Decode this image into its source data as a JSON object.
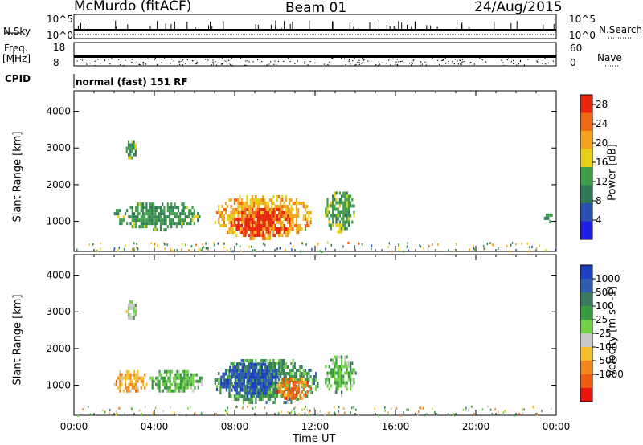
{
  "header": {
    "station": "McMurdo (fitACF)",
    "beam": "Beam 01",
    "date": "24/Aug/2015"
  },
  "strip": {
    "nsky_label": "N.Sky",
    "nsearch_label": "N.Search",
    "freq_label_top": "Freq.",
    "freq_label_unit": "[MHz]",
    "nave_label": "Nave",
    "cpid_label": "CPID",
    "cpid_text": "normal (fast) 151 RF",
    "noise_left_ticks": [
      "10^5",
      "10^0"
    ],
    "noise_right_ticks": [
      "10^5",
      "10^0"
    ],
    "freq_ticks": [
      "18",
      "8"
    ],
    "nave_ticks": [
      "60",
      "0"
    ]
  },
  "colors": {
    "power_scale": [
      "#1e1ee6",
      "#2b4fb0",
      "#2e7a54",
      "#3f9c48",
      "#e6cf15",
      "#f5a31c",
      "#ee6a12",
      "#e8250e"
    ],
    "velocity_scale": [
      "#e8150e",
      "#f05a10",
      "#f0861a",
      "#f5bf2a",
      "#c8c8c8",
      "#6fcf45",
      "#3a9a40",
      "#3a7a60",
      "#2e5db2",
      "#1e3fbf"
    ]
  },
  "chart_data": [
    {
      "type": "heatmap",
      "title": "",
      "xlabel": "Time UT",
      "ylabel": "Slant Range [km]",
      "x_tick_labels": [
        "00:00",
        "04:00",
        "08:00",
        "12:00",
        "16:00",
        "20:00",
        "00:00"
      ],
      "y_tick_labels": [
        "1000",
        "2000",
        "3000",
        "4000"
      ],
      "xlim_hours": [
        0,
        24
      ],
      "ylim_km": [
        180,
        4560
      ],
      "colorbar": {
        "label": "Power [dB]",
        "ticks": [
          "4",
          "8",
          "12",
          "16",
          "20",
          "24",
          "28"
        ],
        "range": [
          0,
          30
        ]
      },
      "features": [
        {
          "time_start": 1.9,
          "time_end": 6.3,
          "range_low": 800,
          "range_high": 1600,
          "value": 12
        },
        {
          "time_start": 6.9,
          "time_end": 11.9,
          "range_low": 550,
          "range_high": 1800,
          "value": 20
        },
        {
          "time_start": 7.7,
          "time_end": 10.8,
          "range_low": 600,
          "range_high": 1450,
          "value": 28
        },
        {
          "time_start": 12.4,
          "time_end": 14.0,
          "range_low": 750,
          "range_high": 1900,
          "value": 13
        },
        {
          "time_start": 2.5,
          "time_end": 3.1,
          "range_low": 2700,
          "range_high": 3300,
          "value": 12
        },
        {
          "time_start": 23.3,
          "time_end": 23.8,
          "range_low": 1000,
          "range_high": 1300,
          "value": 10
        }
      ]
    },
    {
      "type": "heatmap",
      "title": "",
      "xlabel": "Time UT",
      "ylabel": "Slant Range [km]",
      "x_tick_labels": [
        "00:00",
        "04:00",
        "08:00",
        "12:00",
        "16:00",
        "20:00",
        "00:00"
      ],
      "y_tick_labels": [
        "1000",
        "2000",
        "3000",
        "4000"
      ],
      "xlim_hours": [
        0,
        24
      ],
      "ylim_km": [
        180,
        4560
      ],
      "colorbar": {
        "label": "Velocity [m s^-1]",
        "ticks": [
          "1000",
          "500",
          "100",
          "25",
          "-25",
          "-100",
          "-500",
          "-1000"
        ],
        "range": [
          -1250,
          1250
        ]
      },
      "features": [
        {
          "time_start": 1.9,
          "time_end": 3.6,
          "range_low": 800,
          "range_high": 1500,
          "value": -450
        },
        {
          "time_start": 3.6,
          "time_end": 6.4,
          "range_low": 800,
          "range_high": 1500,
          "value": 250
        },
        {
          "time_start": 6.9,
          "time_end": 12.2,
          "range_low": 500,
          "range_high": 1800,
          "value": 400
        },
        {
          "time_start": 7.2,
          "time_end": 10.2,
          "range_low": 700,
          "range_high": 1700,
          "value": 1000
        },
        {
          "time_start": 10.0,
          "time_end": 11.8,
          "range_low": 600,
          "range_high": 1300,
          "value": -700
        },
        {
          "time_start": 12.4,
          "time_end": 14.0,
          "range_low": 750,
          "range_high": 1900,
          "value": 250
        },
        {
          "time_start": 2.5,
          "time_end": 3.1,
          "range_low": 2800,
          "range_high": 3400,
          "value": 0
        }
      ]
    }
  ]
}
